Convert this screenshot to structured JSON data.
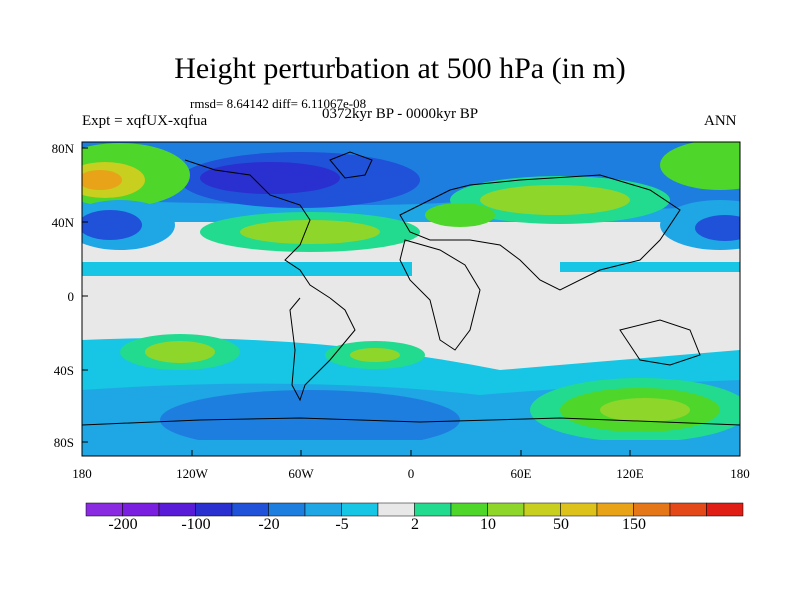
{
  "title": "Height perturbation at 500 hPa (in m)",
  "stats": "rmsd= 8.64142 diff= 6.11067e-08",
  "period": "0372kyr BP - 0000kyr BP",
  "experiment": "Expt = xqfUX-xqfua",
  "season": "ANN",
  "lat_labels": [
    "80N",
    "40N",
    "0",
    "40S",
    "80S"
  ],
  "lon_labels": [
    "180",
    "120W",
    "60W",
    "0",
    "60E",
    "120E",
    "180"
  ],
  "colorbar": {
    "colors": [
      "#8a2be2",
      "#7a1fe0",
      "#5a1bd8",
      "#2a2fcf",
      "#1f52d8",
      "#1e7ee0",
      "#1fa6e5",
      "#16c6e4",
      "#e8e8e8",
      "#22db8f",
      "#4fd62a",
      "#8fd62a",
      "#c8cf1f",
      "#dcc21a",
      "#e8a318",
      "#e67719",
      "#e44a19",
      "#e01e16"
    ],
    "labels": [
      "-200",
      "-100",
      "-20",
      "-5",
      "2",
      "10",
      "50",
      "150"
    ]
  }
}
